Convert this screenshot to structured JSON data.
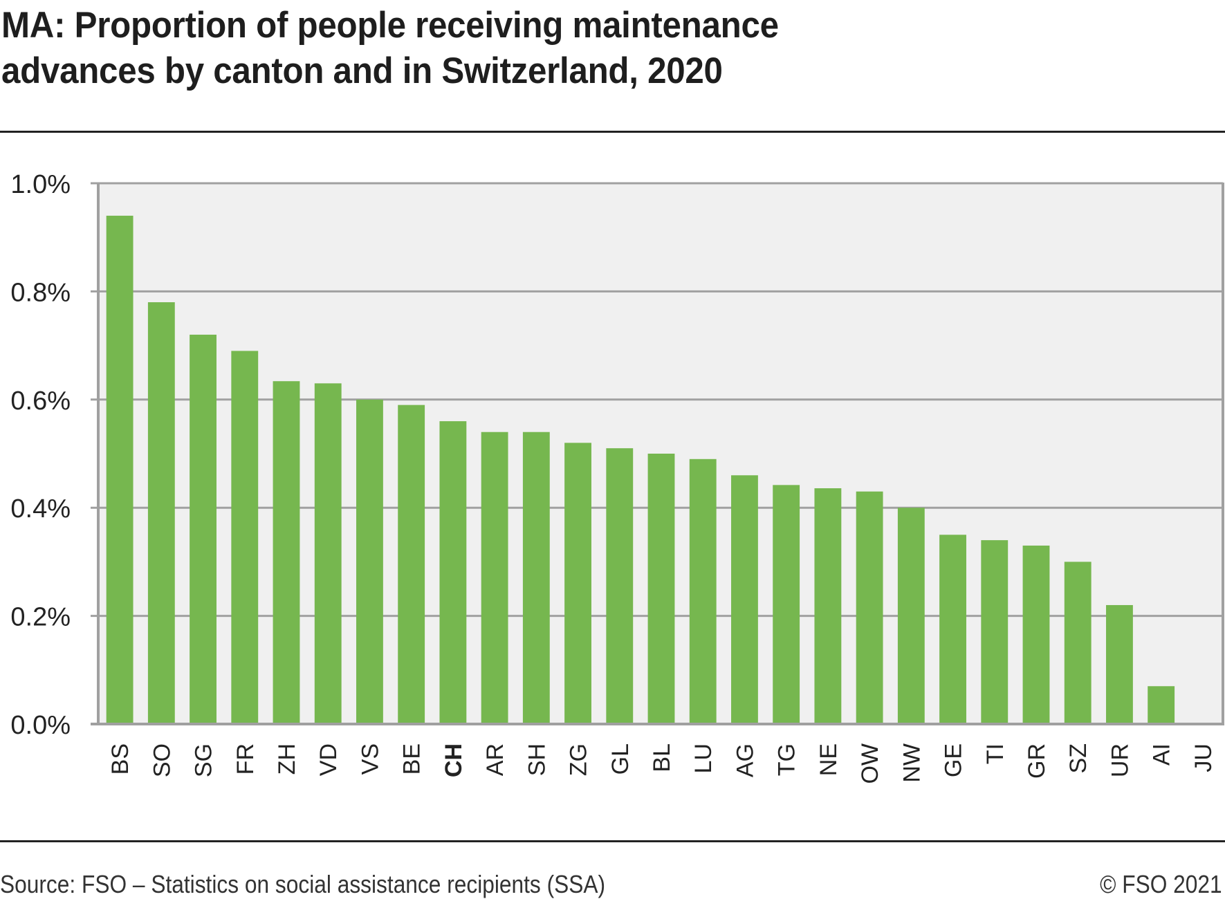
{
  "header": {
    "title_line1": "MA: Proportion of people receiving maintenance",
    "title_line2": "advances by canton and in Switzerland, 2020"
  },
  "footer": {
    "source": "Source: FSO – Statistics on social assistance recipients (SSA)",
    "copyright": "© FSO 2021"
  },
  "colors": {
    "bar": "#76b74f",
    "plot_background": "#f0f0f0",
    "grid": "#a0a0a0",
    "text": "#1e1e1e"
  },
  "chart_data": {
    "type": "bar",
    "title": "MA: Proportion of people receiving maintenance advances by canton and in Switzerland, 2020",
    "xlabel": "",
    "ylabel": "",
    "ylim": [
      0,
      1.0
    ],
    "yticks": [
      0.0,
      0.2,
      0.4,
      0.6,
      0.8,
      1.0
    ],
    "ytick_labels": [
      "0.0%",
      "0.2%",
      "0.4%",
      "0.6%",
      "0.8%",
      "1.0%"
    ],
    "grid": true,
    "highlight_category": "CH",
    "categories": [
      "BS",
      "SO",
      "SG",
      "FR",
      "ZH",
      "VD",
      "VS",
      "BE",
      "CH",
      "AR",
      "SH",
      "ZG",
      "GL",
      "BL",
      "LU",
      "AG",
      "TG",
      "NE",
      "OW",
      "NW",
      "GE",
      "TI",
      "GR",
      "SZ",
      "UR",
      "AI",
      "JU"
    ],
    "values": [
      0.94,
      0.78,
      0.72,
      0.69,
      0.634,
      0.63,
      0.6,
      0.59,
      0.56,
      0.54,
      0.54,
      0.52,
      0.51,
      0.5,
      0.49,
      0.46,
      0.442,
      0.436,
      0.43,
      0.4,
      0.35,
      0.34,
      0.33,
      0.3,
      0.22,
      0.07,
      null
    ],
    "unit": "%"
  }
}
